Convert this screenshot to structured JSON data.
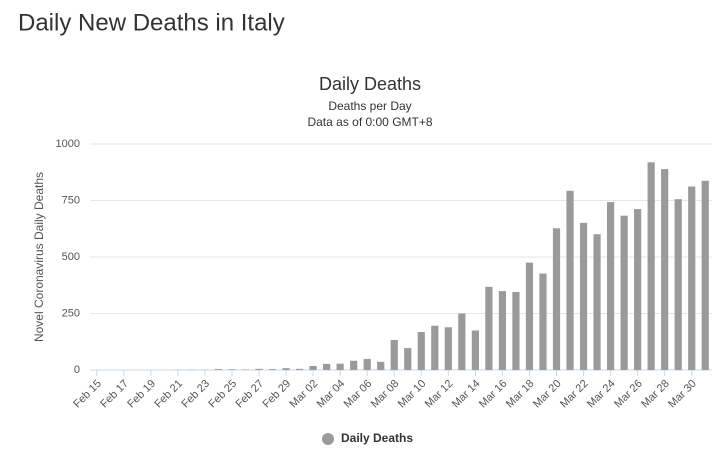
{
  "page_title": "Daily New Deaths in Italy",
  "chart_data": {
    "type": "bar",
    "title": "Daily Deaths",
    "subtitle": [
      "Deaths per Day",
      "Data as of 0:00 GMT+8"
    ],
    "y_label": "Novel Coronavirus Daily Deaths",
    "categories": [
      "Feb 15",
      null,
      "Feb 17",
      null,
      "Feb 19",
      null,
      "Feb 21",
      null,
      "Feb 23",
      null,
      "Feb 25",
      null,
      "Feb 27",
      null,
      "Feb 29",
      null,
      "Mar 02",
      null,
      "Mar 04",
      null,
      "Mar 06",
      null,
      "Mar 08",
      null,
      "Mar 10",
      null,
      "Mar 12",
      null,
      "Mar 14",
      null,
      "Mar 16",
      null,
      "Mar 18",
      null,
      "Mar 20",
      null,
      "Mar 22",
      null,
      "Mar 24",
      null,
      "Mar 26",
      null,
      "Mar 28",
      null,
      "Mar 30",
      null
    ],
    "series": [
      {
        "name": "Daily Deaths",
        "color": "#9a9a9a",
        "values": [
          0,
          0,
          0,
          0,
          0,
          0,
          1,
          1,
          1,
          4,
          3,
          2,
          5,
          4,
          8,
          5,
          18,
          27,
          28,
          41,
          49,
          36,
          133,
          97,
          168,
          196,
          189,
          250,
          175,
          368,
          349,
          345,
          475,
          427,
          627,
          793,
          651,
          601,
          743,
          683,
          712,
          919,
          889,
          756,
          812,
          837
        ]
      }
    ],
    "ylim": [
      0,
      1000
    ],
    "yticks": [
      0,
      250,
      500,
      750,
      1000
    ],
    "grid": true,
    "legend": "bottom"
  }
}
